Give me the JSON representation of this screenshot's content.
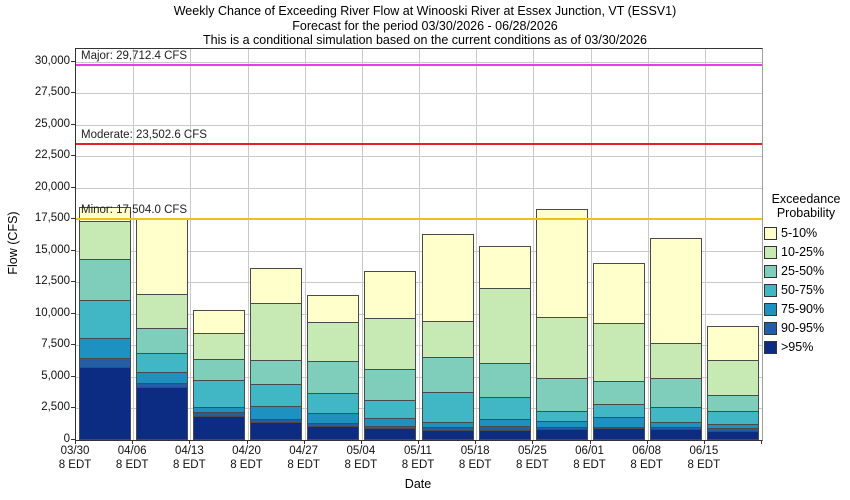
{
  "title": {
    "line1": "Weekly Chance of Exceeding River Flow at Winooski River at Essex Junction, VT (ESSV1)",
    "line2": "Forecast for the period 03/30/2026 - 06/28/2026",
    "line3": "This is a conditional simulation based on the current conditions as of 03/30/2026"
  },
  "legend": {
    "title_line1": "Exceedance",
    "title_line2": "Probability"
  },
  "colors": {
    "gridline": "#c9c9c9",
    "bar_outline": "#4a4a4a",
    "axis": "#333333"
  },
  "chart_data": {
    "type": "bar",
    "subtype": "stacked-exceedance",
    "title": "Weekly Chance of Exceeding River Flow at Winooski River at Essex Junction, VT (ESSV1)",
    "subtitle": "Forecast for the period 03/30/2026 - 06/28/2026",
    "note": "This is a conditional simulation based on the current conditions as of 03/30/2026",
    "xlabel": "Date",
    "ylabel": "Flow (CFS)",
    "ylim": [
      0,
      31000
    ],
    "grid": true,
    "legend_position": "right-outside",
    "yticks": {
      "values": [
        0,
        2500,
        5000,
        7500,
        10000,
        12500,
        15000,
        17500,
        20000,
        22500,
        25000,
        27500,
        30000
      ],
      "labels": [
        "0",
        "2,500",
        "5,000",
        "7,500",
        "10,000",
        "12,500",
        "15,000",
        "17,500",
        "20,000",
        "22,500",
        "25,000",
        "27,500",
        "30,000"
      ]
    },
    "categories": [
      "03/30",
      "04/06",
      "04/13",
      "04/20",
      "04/27",
      "05/04",
      "05/11",
      "05/18",
      "05/25",
      "06/01",
      "06/08",
      "06/15"
    ],
    "tick_time": "8 EDT",
    "bands": [
      {
        "label": "5-10%",
        "color": "#FFFFCC"
      },
      {
        "label": "10-25%",
        "color": "#C7E9B4"
      },
      {
        "label": "25-50%",
        "color": "#7FCDBB"
      },
      {
        "label": "50-75%",
        "color": "#41B6C4"
      },
      {
        "label": "75-90%",
        "color": "#1D91C0"
      },
      {
        "label": "90-95%",
        "color": "#225EA8"
      },
      {
        "label": ">95%",
        "color": "#0C2C84"
      }
    ],
    "bars_cumulative_tops_cfs": [
      {
        "date": "03/30",
        "tops": [
          18500,
          17400,
          14400,
          11100,
          8050,
          6470,
          5760
        ]
      },
      {
        "date": "04/06",
        "tops": [
          17500,
          11600,
          8900,
          6870,
          5370,
          4500,
          4160
        ]
      },
      {
        "date": "04/13",
        "tops": [
          10300,
          8550,
          6450,
          4760,
          2580,
          2180,
          1870
        ]
      },
      {
        "date": "04/20",
        "tops": [
          13600,
          10900,
          6320,
          4420,
          2630,
          1600,
          1400
        ]
      },
      {
        "date": "04/27",
        "tops": [
          11500,
          9400,
          6260,
          3690,
          2110,
          1320,
          1050
        ]
      },
      {
        "date": "05/04",
        "tops": [
          13400,
          9740,
          5610,
          3160,
          1710,
          1080,
          870
        ]
      },
      {
        "date": "05/11",
        "tops": [
          16300,
          9420,
          6530,
          3770,
          1340,
          1000,
          740
        ]
      },
      {
        "date": "05/18",
        "tops": [
          15400,
          12100,
          6080,
          3370,
          1600,
          1050,
          740
        ]
      },
      {
        "date": "05/25",
        "tops": [
          18300,
          9770,
          4870,
          2230,
          1450,
          970,
          770
        ]
      },
      {
        "date": "06/01",
        "tops": [
          14000,
          9340,
          4680,
          2840,
          1740,
          1000,
          850
        ]
      },
      {
        "date": "06/08",
        "tops": [
          16000,
          7650,
          4900,
          2540,
          1340,
          1000,
          790
        ]
      },
      {
        "date": "06/15",
        "tops": [
          9000,
          6400,
          3550,
          2230,
          1180,
          870,
          660
        ]
      }
    ],
    "thresholds": [
      {
        "name": "major",
        "label": "Major: 29,712.4 CFS",
        "value": 29712.4,
        "color": "#E93BE9"
      },
      {
        "name": "moderate",
        "label": "Moderate: 23,502.6 CFS",
        "value": 23502.6,
        "color": "#E02222"
      },
      {
        "name": "minor",
        "label": "Minor: 17,504.0 CFS",
        "value": 17504.0,
        "color": "#EFC11D"
      }
    ]
  }
}
